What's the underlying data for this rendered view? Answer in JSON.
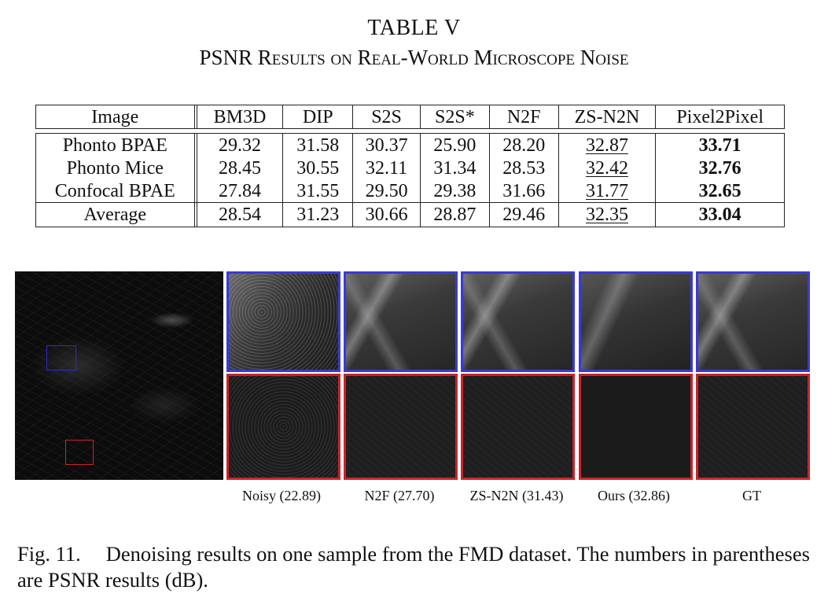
{
  "table": {
    "label": "TABLE V",
    "caption": "PSNR Results on Real-World Microscope Noise",
    "headers": [
      "Image",
      "BM3D",
      "DIP",
      "S2S",
      "S2S*",
      "N2F",
      "ZS-N2N",
      "Pixel2Pixel"
    ],
    "rows": [
      [
        "Phonto BPAE",
        "29.32",
        "31.58",
        "30.37",
        "25.90",
        "28.20",
        "32.87",
        "33.71"
      ],
      [
        "Phonto Mice",
        "28.45",
        "30.55",
        "32.11",
        "31.34",
        "28.53",
        "32.42",
        "32.76"
      ],
      [
        "Confocal BPAE",
        "27.84",
        "31.55",
        "29.50",
        "29.38",
        "31.66",
        "31.77",
        "32.65"
      ]
    ],
    "average": [
      "Average",
      "28.54",
      "31.23",
      "30.66",
      "28.87",
      "29.46",
      "32.35",
      "33.04"
    ],
    "underlined_column": 6,
    "bold_column": 7
  },
  "figure": {
    "patch_labels": [
      "Noisy (22.89)",
      "N2F (27.70)",
      "ZS-N2N (31.43)",
      "Ours (32.86)",
      "GT"
    ],
    "roi_colors": {
      "top": "#3a3ad8",
      "bottom": "#c9232b"
    },
    "caption_number": "Fig. 11.",
    "caption_text": "Denoising results on one sample from the FMD dataset. The numbers in parentheses are PSNR results (dB)."
  }
}
